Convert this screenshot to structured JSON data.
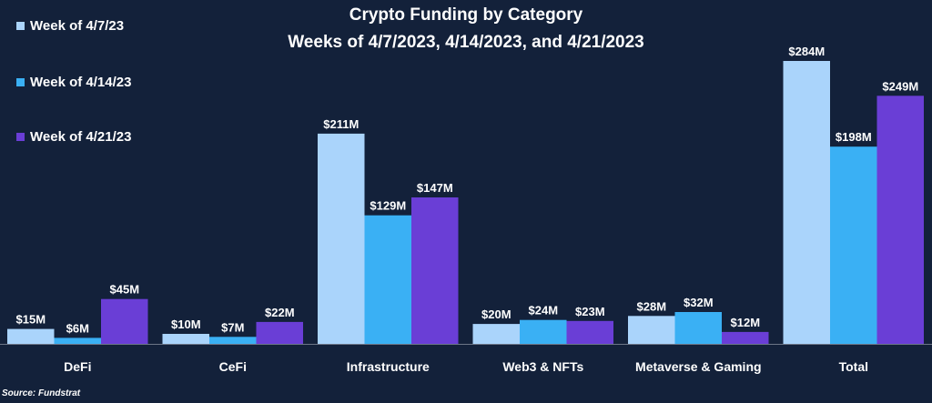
{
  "chart_data": {
    "type": "bar",
    "title": "Crypto Funding by Category",
    "subtitle": "Weeks of 4/7/2023, 4/14/2023, and 4/21/2023",
    "categories": [
      "DeFi",
      "CeFi",
      "Infrastructure",
      "Web3 & NFTs",
      "Metaverse & Gaming",
      "Total"
    ],
    "series": [
      {
        "name": "Week of 4/7/23",
        "color": "#aad4fb",
        "values": [
          15,
          10,
          211,
          20,
          28,
          284
        ],
        "labels": [
          "$15M",
          "$10M",
          "$211M",
          "$20M",
          "$28M",
          "$284M"
        ]
      },
      {
        "name": "Week of 4/14/23",
        "color": "#3ab0f4",
        "values": [
          6,
          7,
          129,
          24,
          32,
          198
        ],
        "labels": [
          "$6M",
          "$7M",
          "$129M",
          "$24M",
          "$32M",
          "$198M"
        ]
      },
      {
        "name": "Week of 4/21/23",
        "color": "#6a3ed6",
        "values": [
          45,
          22,
          147,
          23,
          12,
          249
        ],
        "labels": [
          "$45M",
          "$22M",
          "$147M",
          "$23M",
          "$12M",
          "$249M"
        ]
      }
    ],
    "ylim": [
      0,
      284
    ],
    "grid": false,
    "legend_position": "top-left"
  },
  "source": "Source: Fundstrat"
}
